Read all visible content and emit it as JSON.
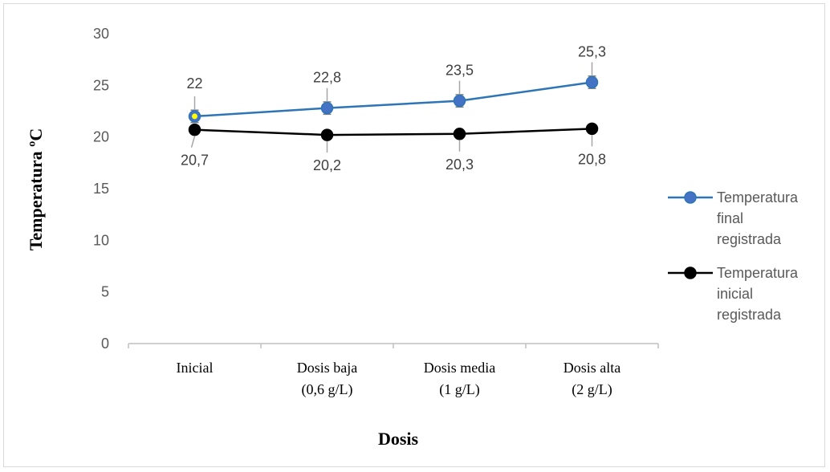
{
  "chart_data": {
    "type": "line",
    "categories": [
      [
        "Inicial"
      ],
      [
        "Dosis baja",
        "(0,6 g/L)"
      ],
      [
        "Dosis media",
        "(1 g/L)"
      ],
      [
        "Dosis alta",
        "(2 g/L)"
      ]
    ],
    "series": [
      {
        "name": "Temperatura final registrada",
        "legend_lines": [
          "Temperatura",
          "final",
          "registrada"
        ],
        "values": [
          22,
          22.8,
          23.5,
          25.3
        ],
        "labels": [
          "22",
          "22,8",
          "23,5",
          "25,3"
        ],
        "error": [
          0.6,
          0.6,
          0.6,
          0.6
        ],
        "color": "#2e75b6",
        "marker_color": "#4472c4",
        "label_position": "above"
      },
      {
        "name": "Temperatura inicial registrada",
        "legend_lines": [
          "Temperatura",
          "inicial",
          "registrada"
        ],
        "values": [
          20.7,
          20.2,
          20.3,
          20.8
        ],
        "labels": [
          "20,7",
          "20,2",
          "20,3",
          "20,8"
        ],
        "color": "#000000",
        "marker_color": "#000000",
        "label_position": "below"
      }
    ],
    "xlabel": "Dosis",
    "ylabel": "Temperatura ºC",
    "ylim": [
      0,
      30
    ],
    "yticks": [
      0,
      5,
      10,
      15,
      20,
      25,
      30
    ],
    "grid": false,
    "legend_position": "right"
  }
}
